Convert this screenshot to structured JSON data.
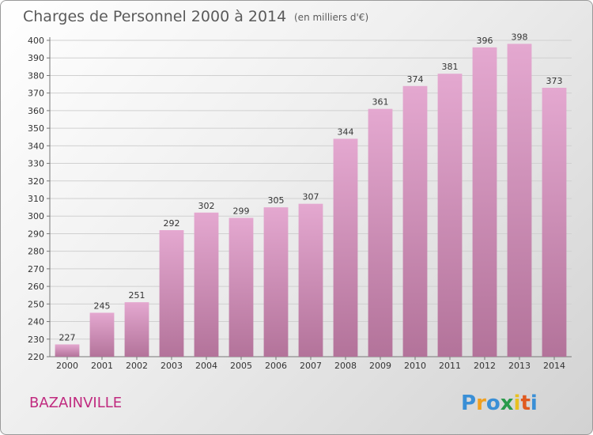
{
  "title": "Charges de Personnel 2000 à 2014",
  "subtitle": "(en milliers d'€)",
  "commune": "BAZAINVILLE",
  "logo": {
    "text": "Proxiti",
    "letters": [
      {
        "char": "P",
        "color": "#3a8fd6"
      },
      {
        "char": "r",
        "color": "#f0a020"
      },
      {
        "char": "o",
        "color": "#3a8fd6"
      },
      {
        "char": "x",
        "color": "#2a9a4a"
      },
      {
        "char": "i",
        "color": "#e8c020"
      },
      {
        "char": "t",
        "color": "#e05a20"
      },
      {
        "char": "i",
        "color": "#3a8fd6"
      }
    ]
  },
  "colors": {
    "bar_top": "#e4a8d0",
    "bar_bottom": "#b3739a",
    "accent": "#c02a7f"
  },
  "chart_data": {
    "type": "bar",
    "categories": [
      "2000",
      "2001",
      "2002",
      "2003",
      "2004",
      "2005",
      "2006",
      "2007",
      "2008",
      "2009",
      "2010",
      "2011",
      "2012",
      "2013",
      "2014"
    ],
    "values": [
      227,
      245,
      251,
      292,
      302,
      299,
      305,
      307,
      344,
      361,
      374,
      381,
      396,
      398,
      373
    ],
    "ylim": [
      220,
      400
    ],
    "yticks": [
      220,
      230,
      240,
      250,
      260,
      270,
      280,
      290,
      300,
      310,
      320,
      330,
      340,
      350,
      360,
      370,
      380,
      390,
      400
    ],
    "grid": true,
    "legend": "none"
  }
}
